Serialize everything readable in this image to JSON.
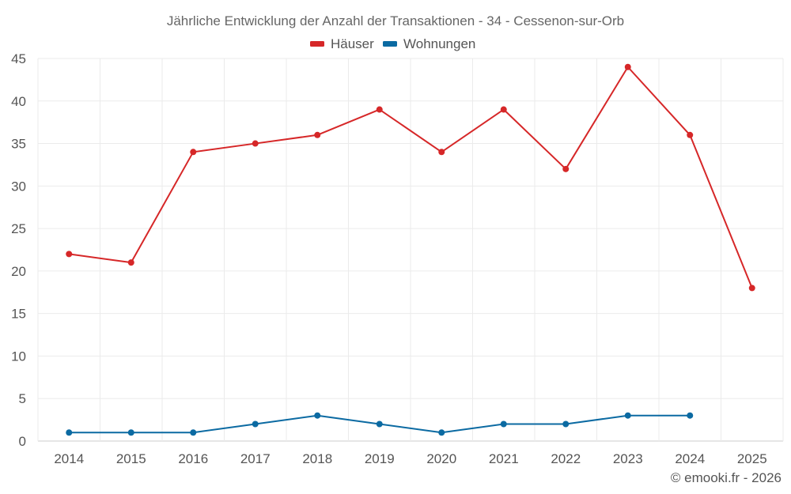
{
  "chart_data": {
    "type": "line",
    "title": "Jährliche Entwicklung der Anzahl der Transaktionen - 34 - Cessenon-sur-Orb",
    "categories": [
      "2014",
      "2015",
      "2016",
      "2017",
      "2018",
      "2019",
      "2020",
      "2021",
      "2022",
      "2023",
      "2024",
      "2025"
    ],
    "series": [
      {
        "name": "Häuser",
        "color": "#d62728",
        "values": [
          22,
          21,
          34,
          35,
          36,
          39,
          34,
          39,
          32,
          44,
          36,
          18
        ]
      },
      {
        "name": "Wohnungen",
        "color": "#0b6aa2",
        "values": [
          1,
          1,
          1,
          2,
          3,
          2,
          1,
          2,
          2,
          3,
          3,
          null
        ]
      }
    ],
    "y_ticks": [
      "0",
      "5",
      "10",
      "15",
      "20",
      "25",
      "30",
      "35",
      "40",
      "45"
    ],
    "ylim": [
      0,
      45
    ],
    "xlabel": "",
    "ylabel": "",
    "legend_position": "top-center",
    "grid": true
  },
  "credit": "© emooki.fr - 2026"
}
